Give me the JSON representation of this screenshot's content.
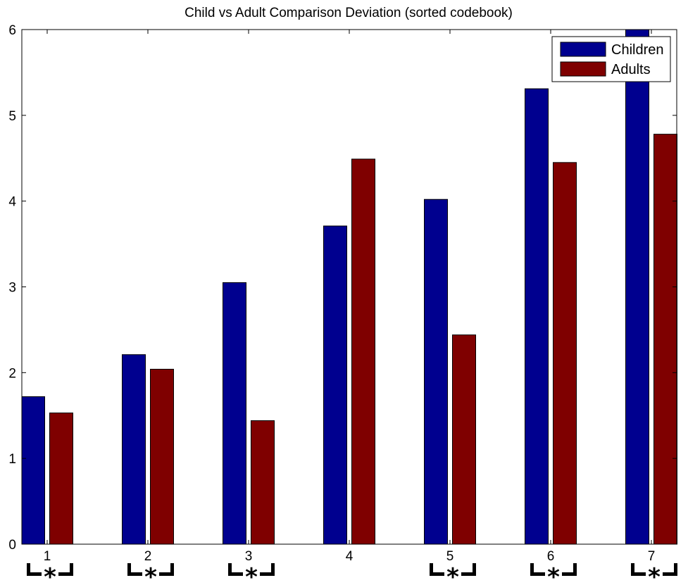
{
  "chart_data": {
    "type": "bar",
    "title": "Child vs Adult Comparison Deviation (sorted codebook)",
    "xlabel": "",
    "ylabel": "",
    "categories": [
      "1",
      "2",
      "3",
      "4",
      "5",
      "6",
      "7"
    ],
    "ylim": [
      0,
      6
    ],
    "yticks": [
      "0",
      "1",
      "2",
      "3",
      "4",
      "5",
      "6"
    ],
    "grid": false,
    "legend_position": "top-right",
    "series": [
      {
        "name": "Children",
        "color": "#00008f",
        "values": [
          1.72,
          2.21,
          3.05,
          3.71,
          4.02,
          5.31,
          6.1
        ]
      },
      {
        "name": "Adults",
        "color": "#7f0000",
        "values": [
          1.53,
          2.04,
          1.44,
          4.49,
          2.44,
          4.45,
          4.78
        ]
      }
    ],
    "significance_marker": "*",
    "significant": [
      true,
      true,
      true,
      false,
      true,
      true,
      true
    ]
  }
}
